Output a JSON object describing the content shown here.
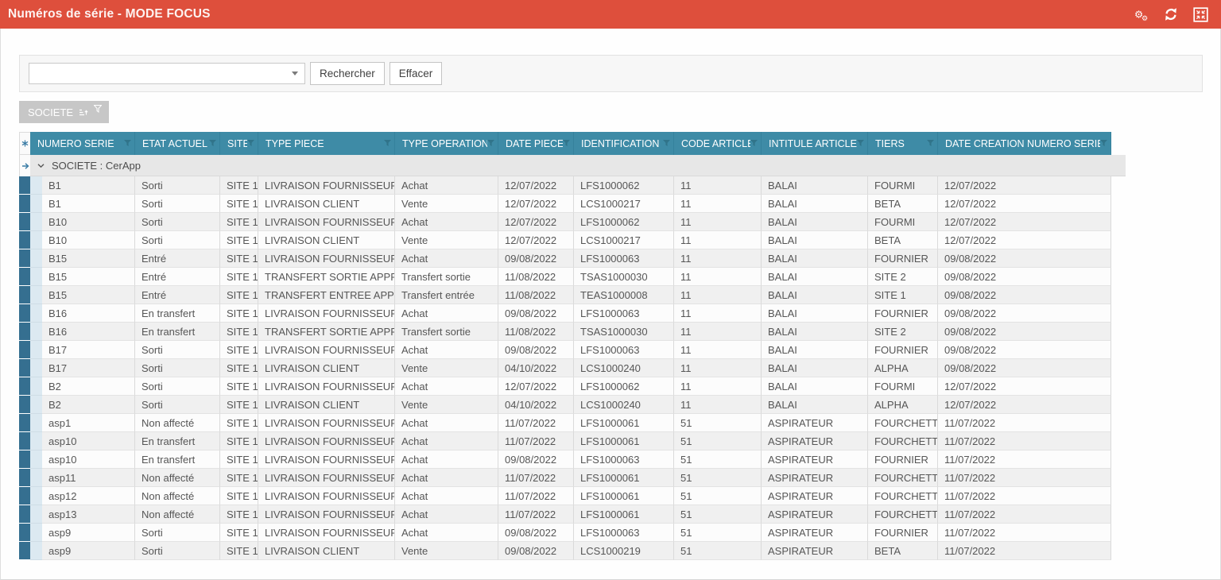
{
  "titlebar": {
    "title": "Numéros de série - MODE FOCUS",
    "icons": [
      "gears-icon",
      "refresh-icon",
      "collapse-icon"
    ]
  },
  "search": {
    "combo_value": "",
    "search_button_label": "Rechercher",
    "clear_button_label": "Effacer"
  },
  "group_panel": {
    "chip_label": "SOCIETE",
    "chip_icons": [
      "sort-asc-icon",
      "filter-icon"
    ]
  },
  "grid": {
    "group_row_label": "SOCIETE : CerApp",
    "columns": [
      "NUMERO SERIE",
      "ETAT ACTUEL",
      "SITE",
      "TYPE PIECE",
      "TYPE OPERATION",
      "DATE PIECE",
      "IDENTIFICATION",
      "CODE ARTICLE",
      "INTITULE ARTICLE",
      "TIERS",
      "DATE CREATION NUMERO SERIE"
    ],
    "rows": [
      [
        "B1",
        "Sorti",
        "SITE 1",
        "LIVRAISON FOURNISSEUR",
        "Achat",
        "12/07/2022",
        "LFS1000062",
        "11",
        "BALAI",
        "FOURMI",
        "12/07/2022"
      ],
      [
        "B1",
        "Sorti",
        "SITE 1",
        "LIVRAISON CLIENT",
        "Vente",
        "12/07/2022",
        "LCS1000217",
        "11",
        "BALAI",
        "BETA",
        "12/07/2022"
      ],
      [
        "B10",
        "Sorti",
        "SITE 1",
        "LIVRAISON FOURNISSEUR",
        "Achat",
        "12/07/2022",
        "LFS1000062",
        "11",
        "BALAI",
        "FOURMI",
        "12/07/2022"
      ],
      [
        "B10",
        "Sorti",
        "SITE 1",
        "LIVRAISON CLIENT",
        "Vente",
        "12/07/2022",
        "LCS1000217",
        "11",
        "BALAI",
        "BETA",
        "12/07/2022"
      ],
      [
        "B15",
        "Entré",
        "SITE 1",
        "LIVRAISON FOURNISSEUR",
        "Achat",
        "09/08/2022",
        "LFS1000063",
        "11",
        "BALAI",
        "FOURNIER",
        "09/08/2022"
      ],
      [
        "B15",
        "Entré",
        "SITE 1",
        "TRANSFERT SORTIE APPRO",
        "Transfert sortie",
        "11/08/2022",
        "TSAS1000030",
        "11",
        "BALAI",
        "SITE 2",
        "09/08/2022"
      ],
      [
        "B15",
        "Entré",
        "SITE 1",
        "TRANSFERT ENTREE APPRO",
        "Transfert entrée",
        "11/08/2022",
        "TEAS1000008",
        "11",
        "BALAI",
        "SITE 1",
        "09/08/2022"
      ],
      [
        "B16",
        "En transfert",
        "SITE 1",
        "LIVRAISON FOURNISSEUR",
        "Achat",
        "09/08/2022",
        "LFS1000063",
        "11",
        "BALAI",
        "FOURNIER",
        "09/08/2022"
      ],
      [
        "B16",
        "En transfert",
        "SITE 1",
        "TRANSFERT SORTIE APPRO",
        "Transfert sortie",
        "11/08/2022",
        "TSAS1000030",
        "11",
        "BALAI",
        "SITE 2",
        "09/08/2022"
      ],
      [
        "B17",
        "Sorti",
        "SITE 1",
        "LIVRAISON FOURNISSEUR",
        "Achat",
        "09/08/2022",
        "LFS1000063",
        "11",
        "BALAI",
        "FOURNIER",
        "09/08/2022"
      ],
      [
        "B17",
        "Sorti",
        "SITE 1",
        "LIVRAISON CLIENT",
        "Vente",
        "04/10/2022",
        "LCS1000240",
        "11",
        "BALAI",
        "ALPHA",
        "09/08/2022"
      ],
      [
        "B2",
        "Sorti",
        "SITE 1",
        "LIVRAISON FOURNISSEUR",
        "Achat",
        "12/07/2022",
        "LFS1000062",
        "11",
        "BALAI",
        "FOURMI",
        "12/07/2022"
      ],
      [
        "B2",
        "Sorti",
        "SITE 1",
        "LIVRAISON CLIENT",
        "Vente",
        "04/10/2022",
        "LCS1000240",
        "11",
        "BALAI",
        "ALPHA",
        "12/07/2022"
      ],
      [
        "asp1",
        "Non affecté",
        "SITE 1",
        "LIVRAISON FOURNISSEUR",
        "Achat",
        "11/07/2022",
        "LFS1000061",
        "51",
        "ASPIRATEUR",
        "FOURCHETTE",
        "11/07/2022"
      ],
      [
        "asp10",
        "En transfert",
        "SITE 1",
        "LIVRAISON FOURNISSEUR",
        "Achat",
        "11/07/2022",
        "LFS1000061",
        "51",
        "ASPIRATEUR",
        "FOURCHETTE",
        "11/07/2022"
      ],
      [
        "asp10",
        "En transfert",
        "SITE 1",
        "LIVRAISON FOURNISSEUR",
        "Achat",
        "09/08/2022",
        "LFS1000063",
        "51",
        "ASPIRATEUR",
        "FOURNIER",
        "11/07/2022"
      ],
      [
        "asp11",
        "Non affecté",
        "SITE 1",
        "LIVRAISON FOURNISSEUR",
        "Achat",
        "11/07/2022",
        "LFS1000061",
        "51",
        "ASPIRATEUR",
        "FOURCHETTE",
        "11/07/2022"
      ],
      [
        "asp12",
        "Non affecté",
        "SITE 1",
        "LIVRAISON FOURNISSEUR",
        "Achat",
        "11/07/2022",
        "LFS1000061",
        "51",
        "ASPIRATEUR",
        "FOURCHETTE",
        "11/07/2022"
      ],
      [
        "asp13",
        "Non affecté",
        "SITE 1",
        "LIVRAISON FOURNISSEUR",
        "Achat",
        "11/07/2022",
        "LFS1000061",
        "51",
        "ASPIRATEUR",
        "FOURCHETTE",
        "11/07/2022"
      ],
      [
        "asp9",
        "Sorti",
        "SITE 1",
        "LIVRAISON FOURNISSEUR",
        "Achat",
        "09/08/2022",
        "LFS1000063",
        "51",
        "ASPIRATEUR",
        "FOURNIER",
        "11/07/2022"
      ],
      [
        "asp9",
        "Sorti",
        "SITE 1",
        "LIVRAISON CLIENT",
        "Vente",
        "09/08/2022",
        "LCS1000219",
        "51",
        "ASPIRATEUR",
        "BETA",
        "11/07/2022"
      ]
    ]
  },
  "colors": {
    "titlebar": "#de4f3c",
    "header": "#3e8ba6",
    "headerline": "#35819c",
    "indicator": "#356f90",
    "indent": "#dce9f1",
    "rowodd": "#f0f0f0",
    "roweven": "#fcfcfc",
    "grouprow": "#e7e7e7",
    "chip": "#c7c7c7",
    "accent": "#3a7ca5"
  }
}
